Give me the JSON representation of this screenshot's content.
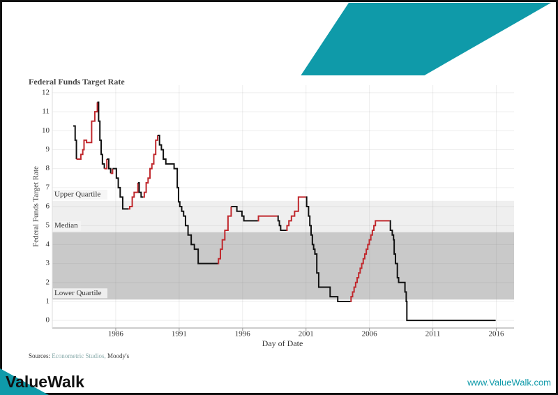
{
  "brand": "ValueWalk",
  "url": "www.ValueWalk.com",
  "chart_data": {
    "type": "step-line",
    "title": "Federal Funds Target Rate",
    "y_label": "Federal Funds Target Rate",
    "x_label": "Day of Date",
    "sources": [
      "Sources:",
      "Econometric Studios,",
      "Moody's"
    ],
    "xlim": [
      1981,
      2017.4
    ],
    "xticks": [
      1986,
      1991,
      1996,
      2001,
      2006,
      2011,
      2016
    ],
    "ylim": [
      -0.4,
      12.4
    ],
    "yticks": [
      0,
      1,
      2,
      3,
      4,
      5,
      6,
      7,
      8,
      9,
      10,
      11,
      12
    ],
    "grid": true,
    "reference_lines": [
      {
        "label": "Upper Quartile",
        "value": 6.3
      },
      {
        "label": "Median",
        "value": 4.65
      },
      {
        "label": "Lower Quartile",
        "value": 1.1
      }
    ],
    "band_colors": [
      "#efefef",
      "#c9c9c9"
    ],
    "series": [
      {
        "color": "#111111",
        "x": [
          1982.65,
          1982.8,
          1982.9
        ],
        "values": [
          10.25,
          9.5,
          8.5
        ]
      },
      {
        "color": "#c0282d",
        "x": [
          1982.9,
          1983.25,
          1983.4,
          1983.5,
          1983.7,
          1984.1,
          1984.35,
          1984.55
        ],
        "values": [
          8.5,
          8.75,
          9.0,
          9.5,
          9.375,
          10.5,
          11.0,
          11.5
        ]
      },
      {
        "color": "#111111",
        "x": [
          1984.55,
          1984.65,
          1984.75,
          1984.85,
          1984.95,
          1985.1
        ],
        "values": [
          11.5,
          10.5,
          9.5,
          8.75,
          8.25,
          8.0
        ]
      },
      {
        "color": "#c0282d",
        "x": [
          1985.1,
          1985.3
        ],
        "values": [
          8.0,
          8.5
        ]
      },
      {
        "color": "#111111",
        "x": [
          1985.3,
          1985.45,
          1985.6
        ],
        "values": [
          8.5,
          8.0,
          7.75
        ]
      },
      {
        "color": "#c0282d",
        "x": [
          1985.6,
          1985.75
        ],
        "values": [
          7.75,
          8.0
        ]
      },
      {
        "color": "#111111",
        "x": [
          1985.75,
          1986.05,
          1986.2,
          1986.35,
          1986.55,
          1987.0
        ],
        "values": [
          8.0,
          7.5,
          7.0,
          6.5,
          5.875,
          5.875
        ]
      },
      {
        "color": "#c0282d",
        "x": [
          1987.0,
          1987.1,
          1987.3,
          1987.45,
          1987.75
        ],
        "values": [
          5.875,
          6.0,
          6.5,
          6.75,
          7.25
        ]
      },
      {
        "color": "#111111",
        "x": [
          1987.75,
          1987.85,
          1988.0,
          1988.15
        ],
        "values": [
          7.25,
          6.75,
          6.5,
          6.5
        ]
      },
      {
        "color": "#c0282d",
        "x": [
          1988.15,
          1988.25,
          1988.4,
          1988.55,
          1988.7,
          1988.85,
          1989.0,
          1989.15,
          1989.3
        ],
        "values": [
          6.5,
          6.75,
          7.25,
          7.5,
          8.0,
          8.25,
          8.75,
          9.5,
          9.75
        ]
      },
      {
        "color": "#111111",
        "x": [
          1989.3,
          1989.45,
          1989.6,
          1989.75,
          1989.95,
          1990.6,
          1990.85,
          1990.95,
          1991.05,
          1991.2,
          1991.35,
          1991.5,
          1991.7,
          1991.95,
          1992.2,
          1992.5,
          1994.05
        ],
        "values": [
          9.75,
          9.25,
          9.0,
          8.5,
          8.25,
          8.0,
          7.0,
          6.25,
          6.0,
          5.75,
          5.5,
          5.0,
          4.5,
          4.0,
          3.75,
          3.0,
          3.0
        ]
      },
      {
        "color": "#c0282d",
        "x": [
          1994.05,
          1994.1,
          1994.25,
          1994.4,
          1994.6,
          1994.85,
          1995.1
        ],
        "values": [
          3.0,
          3.25,
          3.75,
          4.25,
          4.75,
          5.5,
          6.0
        ]
      },
      {
        "color": "#111111",
        "x": [
          1995.1,
          1995.55,
          1995.95,
          1996.1,
          1997.2
        ],
        "values": [
          6.0,
          5.75,
          5.5,
          5.25,
          5.25
        ]
      },
      {
        "color": "#c0282d",
        "x": [
          1997.2,
          1997.25,
          1998.75
        ],
        "values": [
          5.25,
          5.5,
          5.5
        ]
      },
      {
        "color": "#111111",
        "x": [
          1998.75,
          1998.8,
          1998.9,
          1999.0,
          1999.45
        ],
        "values": [
          5.5,
          5.25,
          5.0,
          4.75,
          4.75
        ]
      },
      {
        "color": "#c0282d",
        "x": [
          1999.45,
          1999.5,
          1999.65,
          1999.85,
          2000.1,
          2000.4,
          2001.0
        ],
        "values": [
          4.75,
          5.0,
          5.25,
          5.5,
          5.75,
          6.5,
          6.5
        ]
      },
      {
        "color": "#111111",
        "x": [
          2001.0,
          2001.05,
          2001.2,
          2001.3,
          2001.4,
          2001.5,
          2001.6,
          2001.7,
          2001.85,
          2002.0,
          2002.9,
          2003.5,
          2004.5
        ],
        "values": [
          6.5,
          6.0,
          5.5,
          5.0,
          4.5,
          4.0,
          3.75,
          3.5,
          2.5,
          1.75,
          1.25,
          1.0,
          1.0
        ]
      },
      {
        "color": "#c0282d",
        "x": [
          2004.5,
          2004.55,
          2004.67,
          2004.79,
          2004.91,
          2005.03,
          2005.15,
          2005.27,
          2005.39,
          2005.51,
          2005.63,
          2005.75,
          2005.87,
          2005.99,
          2006.11,
          2006.23,
          2006.35,
          2006.47,
          2007.6
        ],
        "values": [
          1.0,
          1.25,
          1.5,
          1.75,
          2.0,
          2.25,
          2.5,
          2.75,
          3.0,
          3.25,
          3.5,
          3.75,
          4.0,
          4.25,
          4.5,
          4.75,
          5.0,
          5.25,
          5.25
        ]
      },
      {
        "color": "#111111",
        "x": [
          2007.6,
          2007.65,
          2007.8,
          2007.9,
          2007.95,
          2008.05,
          2008.2,
          2008.3,
          2008.75,
          2008.8,
          2008.9,
          2008.95,
          2015.95
        ],
        "values": [
          5.25,
          4.75,
          4.5,
          4.25,
          3.5,
          3.0,
          2.25,
          2.0,
          2.0,
          1.5,
          1.0,
          0.0,
          0.0
        ]
      }
    ]
  }
}
